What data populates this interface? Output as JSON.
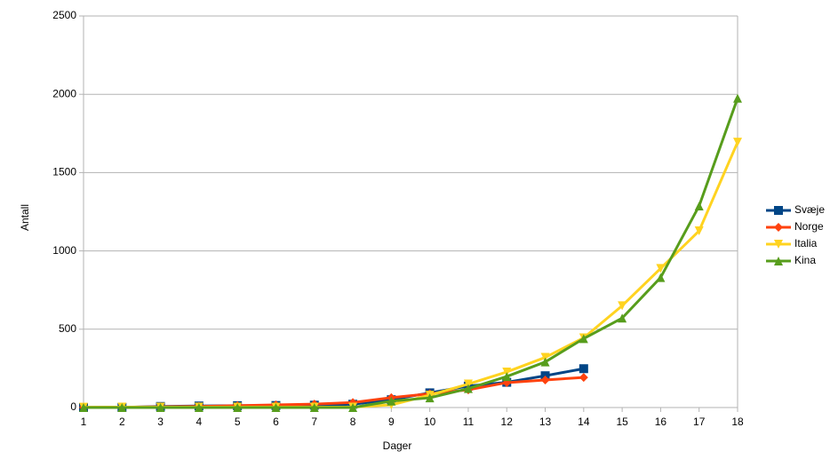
{
  "chart_data": {
    "type": "line",
    "x_label": "Dager",
    "y_label": "Antall",
    "x": [
      1,
      2,
      3,
      4,
      5,
      6,
      7,
      8,
      9,
      10,
      11,
      12,
      13,
      14,
      15,
      16,
      17,
      18
    ],
    "xlim": [
      1,
      18
    ],
    "xticks": [
      1,
      2,
      3,
      4,
      5,
      6,
      7,
      8,
      9,
      10,
      11,
      12,
      13,
      14,
      15,
      16,
      17,
      18
    ],
    "ylim": [
      0,
      2500
    ],
    "yticks": [
      0,
      500,
      1000,
      1500,
      2000,
      2500
    ],
    "grid": true,
    "legend": "right",
    "series": [
      {
        "name": "Svæje",
        "color": "#004586",
        "marker": "square",
        "values": [
          0,
          1,
          7,
          10,
          12,
          13,
          15,
          21,
          50,
          94,
          137,
          161,
          203,
          248,
          null,
          null,
          null,
          null
        ]
      },
      {
        "name": "Norge",
        "color": "#ff420e",
        "marker": "diamond",
        "values": [
          1,
          2,
          5,
          7,
          12,
          17,
          22,
          32,
          63,
          88,
          113,
          159,
          176,
          192,
          null,
          null,
          null,
          null
        ]
      },
      {
        "name": "Italia",
        "color": "#ffd320",
        "marker": "triangle-down",
        "values": [
          2,
          3,
          3,
          3,
          3,
          3,
          3,
          3,
          17,
          79,
          150,
          227,
          320,
          445,
          650,
          888,
          1128,
          1694
        ]
      },
      {
        "name": "Kina",
        "color": "#579d1c",
        "marker": "triangle-up",
        "values": [
          0,
          0,
          0,
          0,
          0,
          0,
          0,
          0,
          41,
          62,
          121,
          198,
          291,
          440,
          571,
          830,
          1287,
          1975
        ]
      }
    ]
  }
}
